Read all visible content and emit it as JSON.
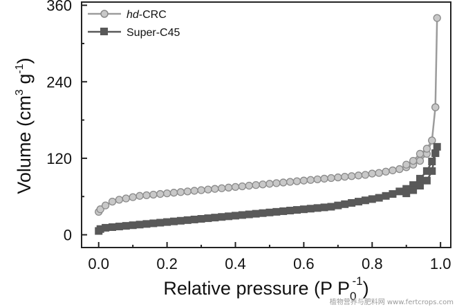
{
  "chart_data": {
    "type": "line",
    "title": "",
    "xlabel_main": "Relative pressure (P P",
    "xlabel_sub": "0",
    "xlabel_sup": "-1",
    "xlabel_end": ")",
    "ylabel_main": "Volume (cm",
    "ylabel_sup1": "3",
    "ylabel_mid": " g",
    "ylabel_sup2": "-1",
    "ylabel_end": ")",
    "xlim": [
      -0.05,
      1.03
    ],
    "ylim": [
      -20,
      365
    ],
    "x_ticks": [
      0.0,
      0.2,
      0.4,
      0.6,
      0.8,
      1.0
    ],
    "x_tick_labels": [
      "0.0",
      "0.2",
      "0.4",
      "0.6",
      "0.8",
      "1.0"
    ],
    "y_ticks": [
      0,
      120,
      240,
      360
    ],
    "y_tick_labels": [
      "0",
      "120",
      "240",
      "360"
    ],
    "legend_position": "top-left",
    "series": [
      {
        "name_italic": "hd",
        "name_rest": "-CRC",
        "color": "#9b9b9b",
        "marker": "circle",
        "x": [
          0.0,
          0.005,
          0.02,
          0.04,
          0.06,
          0.08,
          0.1,
          0.12,
          0.14,
          0.16,
          0.18,
          0.2,
          0.22,
          0.24,
          0.26,
          0.28,
          0.3,
          0.32,
          0.34,
          0.36,
          0.38,
          0.4,
          0.42,
          0.44,
          0.46,
          0.48,
          0.5,
          0.52,
          0.54,
          0.56,
          0.58,
          0.6,
          0.62,
          0.64,
          0.66,
          0.68,
          0.7,
          0.72,
          0.74,
          0.76,
          0.78,
          0.8,
          0.82,
          0.84,
          0.86,
          0.88,
          0.9,
          0.92,
          0.94,
          0.96,
          0.975,
          0.985,
          0.99,
          0.985,
          0.975,
          0.96,
          0.94,
          0.92,
          0.9
        ],
        "y": [
          36,
          40,
          46,
          52,
          55,
          57,
          59,
          61,
          62,
          63,
          64,
          65,
          66,
          67,
          68,
          69,
          70,
          71,
          72,
          73,
          74,
          75,
          76,
          77,
          78,
          79,
          80,
          81,
          82,
          83,
          84,
          85,
          86,
          87,
          88,
          89,
          90,
          91,
          92,
          93,
          94,
          96,
          97,
          99,
          101,
          103,
          106,
          110,
          116,
          127,
          148,
          200,
          340,
          200,
          148,
          135,
          127,
          116,
          110
        ]
      },
      {
        "name": "Super-C45",
        "color": "#595959",
        "marker": "square",
        "x": [
          0.0,
          0.005,
          0.02,
          0.04,
          0.06,
          0.08,
          0.1,
          0.12,
          0.14,
          0.16,
          0.18,
          0.2,
          0.22,
          0.24,
          0.26,
          0.28,
          0.3,
          0.32,
          0.34,
          0.36,
          0.38,
          0.4,
          0.42,
          0.44,
          0.46,
          0.48,
          0.5,
          0.52,
          0.54,
          0.56,
          0.58,
          0.6,
          0.62,
          0.64,
          0.66,
          0.68,
          0.7,
          0.72,
          0.74,
          0.76,
          0.78,
          0.8,
          0.82,
          0.84,
          0.86,
          0.88,
          0.9,
          0.92,
          0.94,
          0.96,
          0.975,
          0.985,
          0.99,
          0.985,
          0.975,
          0.96,
          0.94,
          0.92,
          0.9
        ],
        "y": [
          6,
          9,
          11,
          12,
          13,
          14,
          15,
          16,
          17,
          18,
          19,
          20,
          21,
          22,
          23,
          24,
          25,
          26,
          27,
          28,
          29,
          30,
          31,
          32,
          33,
          34,
          35,
          36,
          37,
          38,
          39,
          40,
          41,
          42,
          43,
          44,
          46,
          48,
          50,
          52,
          54,
          56,
          58,
          61,
          64,
          68,
          72,
          78,
          88,
          100,
          115,
          128,
          138,
          128,
          100,
          85,
          77,
          70,
          65
        ]
      }
    ],
    "watermark": "植物营养与肥料网 www.fertcrops.com"
  }
}
